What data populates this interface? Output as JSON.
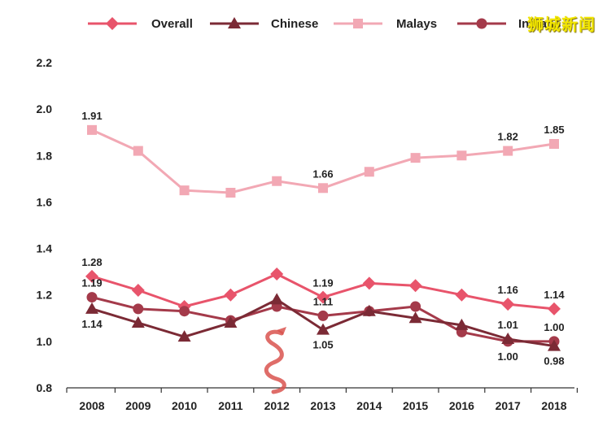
{
  "watermark": "狮城新闻",
  "chart_data": {
    "type": "line",
    "x": [
      "2008",
      "2009",
      "2010",
      "2011",
      "2012",
      "2013",
      "2014",
      "2015",
      "2016",
      "2017",
      "2018"
    ],
    "ylim": [
      0.8,
      2.2
    ],
    "yticks": [
      "0.8",
      "1.0",
      "1.2",
      "1.4",
      "1.6",
      "1.8",
      "2.0",
      "2.2"
    ],
    "grid": false,
    "legend_position": "top",
    "series": [
      {
        "name": "Overall",
        "color": "#e8546b",
        "marker": "diamond",
        "values": [
          1.28,
          1.22,
          1.15,
          1.2,
          1.29,
          1.19,
          1.25,
          1.24,
          1.2,
          1.16,
          1.14
        ]
      },
      {
        "name": "Chinese",
        "color": "#7b2a35",
        "marker": "triangle",
        "values": [
          1.14,
          1.08,
          1.02,
          1.08,
          1.18,
          1.05,
          1.13,
          1.1,
          1.07,
          1.01,
          0.98
        ]
      },
      {
        "name": "Malays",
        "color": "#f2a8b4",
        "marker": "square",
        "values": [
          1.91,
          1.82,
          1.65,
          1.64,
          1.69,
          1.66,
          1.73,
          1.79,
          1.8,
          1.82,
          1.85
        ]
      },
      {
        "name": "Indians",
        "color": "#a43a4a",
        "marker": "circle",
        "values": [
          1.19,
          1.14,
          1.13,
          1.09,
          1.15,
          1.11,
          1.13,
          1.15,
          1.04,
          1.0,
          1.0
        ]
      }
    ],
    "annotations": [
      {
        "series": 2,
        "index": 0,
        "text": "1.91",
        "pos": "above"
      },
      {
        "series": 2,
        "index": 5,
        "text": "1.66",
        "pos": "above"
      },
      {
        "series": 2,
        "index": 9,
        "text": "1.82",
        "pos": "above"
      },
      {
        "series": 2,
        "index": 10,
        "text": "1.85",
        "pos": "above"
      },
      {
        "series": 0,
        "index": 0,
        "text": "1.28",
        "pos": "above"
      },
      {
        "series": 0,
        "index": 5,
        "text": "1.19",
        "pos": "above"
      },
      {
        "series": 0,
        "index": 9,
        "text": "1.16",
        "pos": "above"
      },
      {
        "series": 0,
        "index": 10,
        "text": "1.14",
        "pos": "above"
      },
      {
        "series": 3,
        "index": 0,
        "text": "1.19",
        "pos": "above"
      },
      {
        "series": 3,
        "index": 5,
        "text": "1.11",
        "pos": "above"
      },
      {
        "series": 3,
        "index": 9,
        "text": "1.00",
        "pos": "below"
      },
      {
        "series": 3,
        "index": 10,
        "text": "1.00",
        "pos": "above"
      },
      {
        "series": 1,
        "index": 0,
        "text": "1.14",
        "pos": "below"
      },
      {
        "series": 1,
        "index": 5,
        "text": "1.05",
        "pos": "below"
      },
      {
        "series": 1,
        "index": 9,
        "text": "1.01",
        "pos": "above"
      },
      {
        "series": 1,
        "index": 10,
        "text": "0.98",
        "pos": "below"
      }
    ]
  }
}
